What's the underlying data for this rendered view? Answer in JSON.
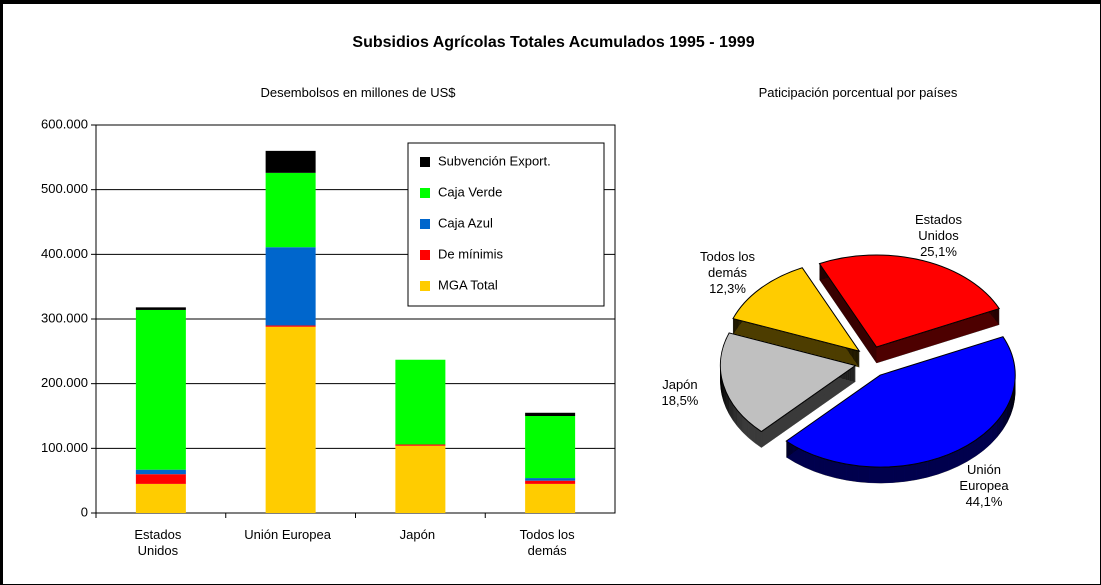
{
  "title": "Subsidios Agrícolas Totales Acumulados 1995 - 1999",
  "chart_data": [
    {
      "type": "bar",
      "stacked": true,
      "subtitle": "Desembolsos en millones de US$",
      "categories": [
        "Estados Unidos",
        "Unión Europea",
        "Japón",
        "Todos los demás"
      ],
      "series": [
        {
          "name": "MGA Total",
          "color": "#ffcc00",
          "values": [
            45000,
            288000,
            104000,
            45000
          ]
        },
        {
          "name": "De mínimis",
          "color": "#ff0000",
          "values": [
            15000,
            2000,
            2000,
            5000
          ]
        },
        {
          "name": "Caja Azul",
          "color": "#0066cc",
          "values": [
            7000,
            121000,
            0,
            4000
          ]
        },
        {
          "name": "Caja Verde",
          "color": "#00ff00",
          "values": [
            247000,
            115000,
            131000,
            96000
          ]
        },
        {
          "name": "Subvención Export.",
          "color": "#000000",
          "values": [
            4000,
            34000,
            0,
            5000
          ]
        }
      ],
      "ylim": [
        0,
        600000
      ],
      "yticks": [
        0,
        {
          "value": 100000,
          "label": "100.000"
        },
        {
          "value": 200000,
          "label": "200.000"
        },
        {
          "value": 300000,
          "label": "300.000"
        },
        {
          "value": 400000,
          "label": "400.000"
        },
        {
          "value": 500000,
          "label": "500.000"
        },
        {
          "value": 600000,
          "label": "600.000"
        }
      ],
      "grid": true,
      "legend": "upper right"
    },
    {
      "type": "pie",
      "subtitle": "Paticipación porcentual por países",
      "categories": [
        "Estados Unidos",
        "Unión Europea",
        "Japón",
        "Todos los demás"
      ],
      "values": [
        25.1,
        44.1,
        18.5,
        12.3
      ],
      "value_labels": [
        "25,1%",
        "44,1%",
        "18,5%",
        "12,3%"
      ],
      "colors": [
        "#ff0000",
        "#0000ff",
        "#c0c0c0",
        "#ffcc00"
      ]
    }
  ]
}
